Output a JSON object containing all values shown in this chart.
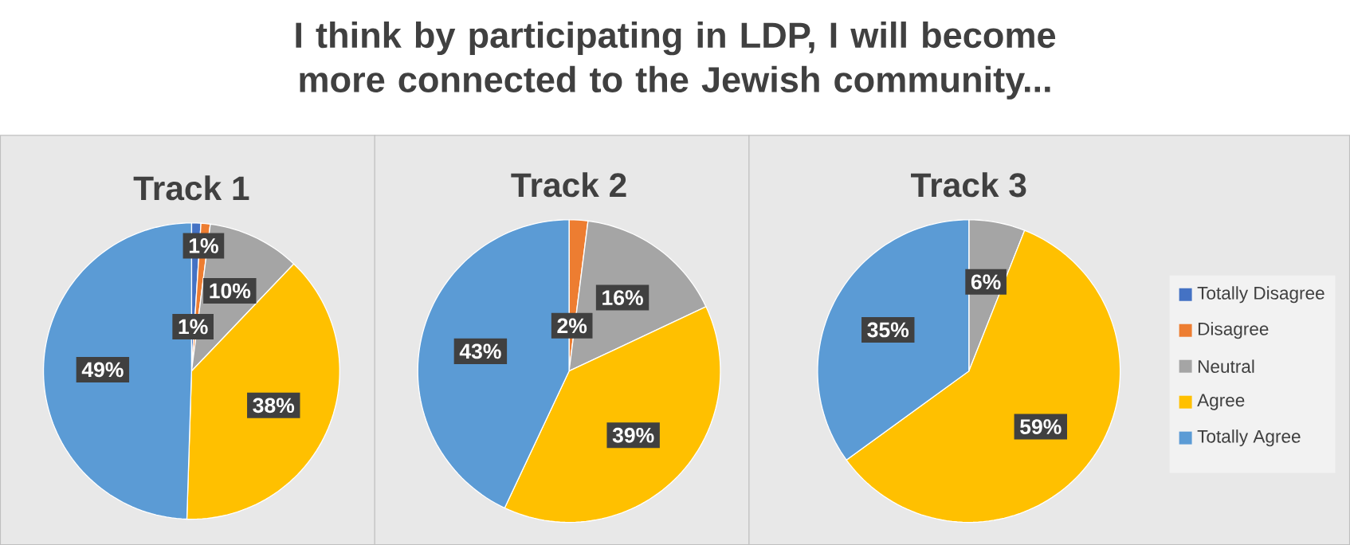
{
  "chart_data": [
    {
      "type": "pie",
      "title": "Track 1",
      "annotations": [
        "I think by participating in LDP, I will become more connected to the Jewish community..."
      ],
      "categories": [
        null,
        null,
        null,
        null,
        null
      ],
      "values": [
        1,
        1,
        10,
        38,
        49
      ],
      "value_labels": [
        "1%",
        "1%",
        "10%",
        "38%",
        "49%"
      ],
      "colors": [
        "#4472c4",
        "#ed7d31",
        "#a5a5a5",
        "#ffc000",
        "#5b9bd5"
      ]
    },
    {
      "type": "pie",
      "title": "Track 2",
      "categories": [
        null,
        null,
        null,
        null,
        null
      ],
      "values": [
        0,
        2,
        16,
        39,
        43
      ],
      "value_labels": [
        null,
        "2%",
        "16%",
        "39%",
        "43%"
      ],
      "colors": [
        "#4472c4",
        "#ed7d31",
        "#a5a5a5",
        "#ffc000",
        "#5b9bd5"
      ]
    },
    {
      "type": "pie",
      "title": "Track 3",
      "categories": [
        "Totally Disagree",
        "Disagree",
        "Neutral",
        "Agree",
        "Totally Agree"
      ],
      "values": [
        0,
        0,
        6,
        59,
        35
      ],
      "value_labels": [
        null,
        null,
        "6%",
        "59%",
        "35%"
      ],
      "colors": [
        "#4472c4",
        "#ed7d31",
        "#a5a5a5",
        "#ffc000",
        "#5b9bd5"
      ],
      "legend": "right"
    }
  ]
}
